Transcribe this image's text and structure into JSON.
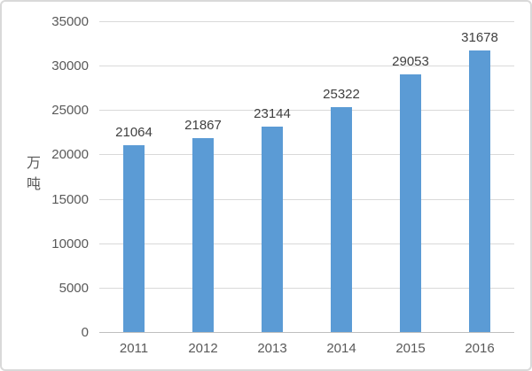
{
  "chart_data": {
    "type": "bar",
    "title": "",
    "categories": [
      "2011",
      "2012",
      "2013",
      "2014",
      "2015",
      "2016"
    ],
    "values": [
      21064,
      21867,
      23144,
      25322,
      29053,
      31678
    ],
    "xlabel": "",
    "ylabel": "万吨",
    "ylim": [
      0,
      35000
    ],
    "yticks": [
      0,
      5000,
      10000,
      15000,
      20000,
      25000,
      30000,
      35000
    ],
    "grid": true,
    "legend": false,
    "bar_color": "#5b9bd5",
    "data_label_color": "#404040",
    "axis_text_color": "#595959",
    "gridline_color": "#d9d9d9",
    "axis_line_color": "#bfbfbf"
  }
}
